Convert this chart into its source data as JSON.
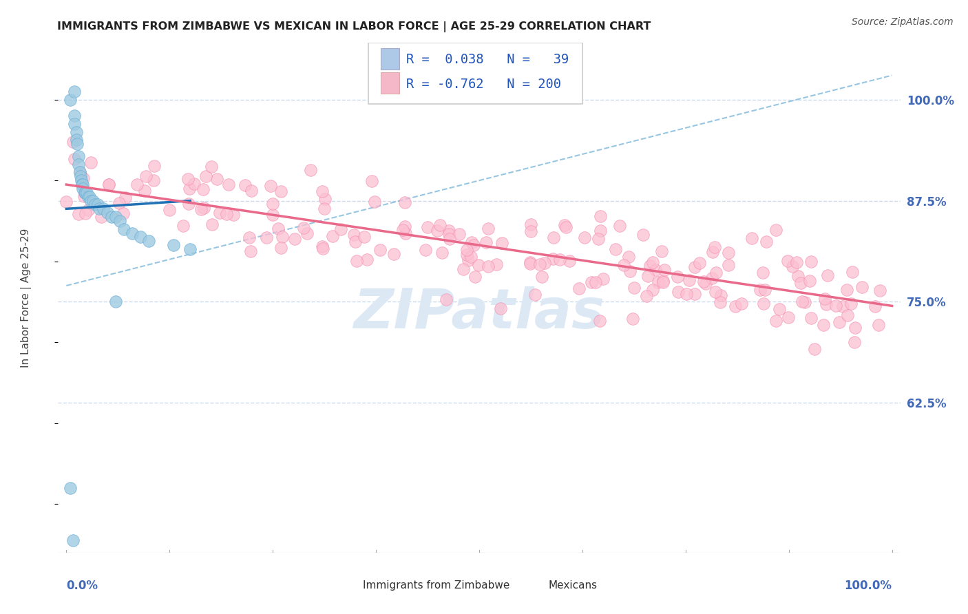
{
  "title": "IMMIGRANTS FROM ZIMBABWE VS MEXICAN IN LABOR FORCE | AGE 25-29 CORRELATION CHART",
  "source": "Source: ZipAtlas.com",
  "ylabel": "In Labor Force | Age 25-29",
  "ytick_labels": [
    "62.5%",
    "75.0%",
    "87.5%",
    "100.0%"
  ],
  "ytick_values": [
    0.625,
    0.75,
    0.875,
    1.0
  ],
  "xlim": [
    -0.01,
    1.01
  ],
  "ylim": [
    0.44,
    1.07
  ],
  "zimbabwe_color": "#9ecae1",
  "zimbabwe_edge": "#6baed6",
  "mexican_color": "#fcbfd2",
  "mexican_edge": "#f48fb1",
  "trend_blue_solid": "#2171b5",
  "trend_pink_solid": "#e8698a",
  "trend_blue_dashed": "#6baed6",
  "watermark_color": "#dce9f5",
  "background_color": "#ffffff",
  "grid_color": "#c8d8ec",
  "legend_zim_color": "#aec8e8",
  "legend_mex_color": "#f5b8c8",
  "zimbabwe_n": 39,
  "mexican_n": 200,
  "zimbabwe_R": 0.038,
  "mexican_R": -0.762,
  "zim_x": [
    0.005,
    0.01,
    0.01,
    0.012,
    0.012,
    0.013,
    0.015,
    0.015,
    0.016,
    0.017,
    0.018,
    0.019,
    0.02,
    0.02,
    0.022,
    0.023,
    0.025,
    0.026,
    0.028,
    0.03,
    0.032,
    0.035,
    0.038,
    0.04,
    0.045,
    0.05,
    0.055,
    0.06,
    0.065,
    0.07,
    0.08,
    0.09,
    0.1,
    0.13,
    0.15,
    0.005,
    0.008,
    0.06,
    0.01
  ],
  "zim_y": [
    1.0,
    0.98,
    0.97,
    0.96,
    0.95,
    0.945,
    0.93,
    0.92,
    0.91,
    0.905,
    0.9,
    0.895,
    0.895,
    0.89,
    0.885,
    0.885,
    0.885,
    0.88,
    0.88,
    0.875,
    0.875,
    0.87,
    0.87,
    0.865,
    0.865,
    0.86,
    0.855,
    0.855,
    0.85,
    0.84,
    0.835,
    0.83,
    0.825,
    0.82,
    0.815,
    0.52,
    0.455,
    0.75,
    1.01
  ],
  "zim_trendline": [
    0.0,
    0.15
  ],
  "zim_trend_y": [
    0.865,
    0.875
  ],
  "mex_trendline_x": [
    0.0,
    1.0
  ],
  "mex_trend_y": [
    0.895,
    0.745
  ],
  "dashed_line_x": [
    0.0,
    1.0
  ],
  "dashed_line_y": [
    0.77,
    1.03
  ]
}
